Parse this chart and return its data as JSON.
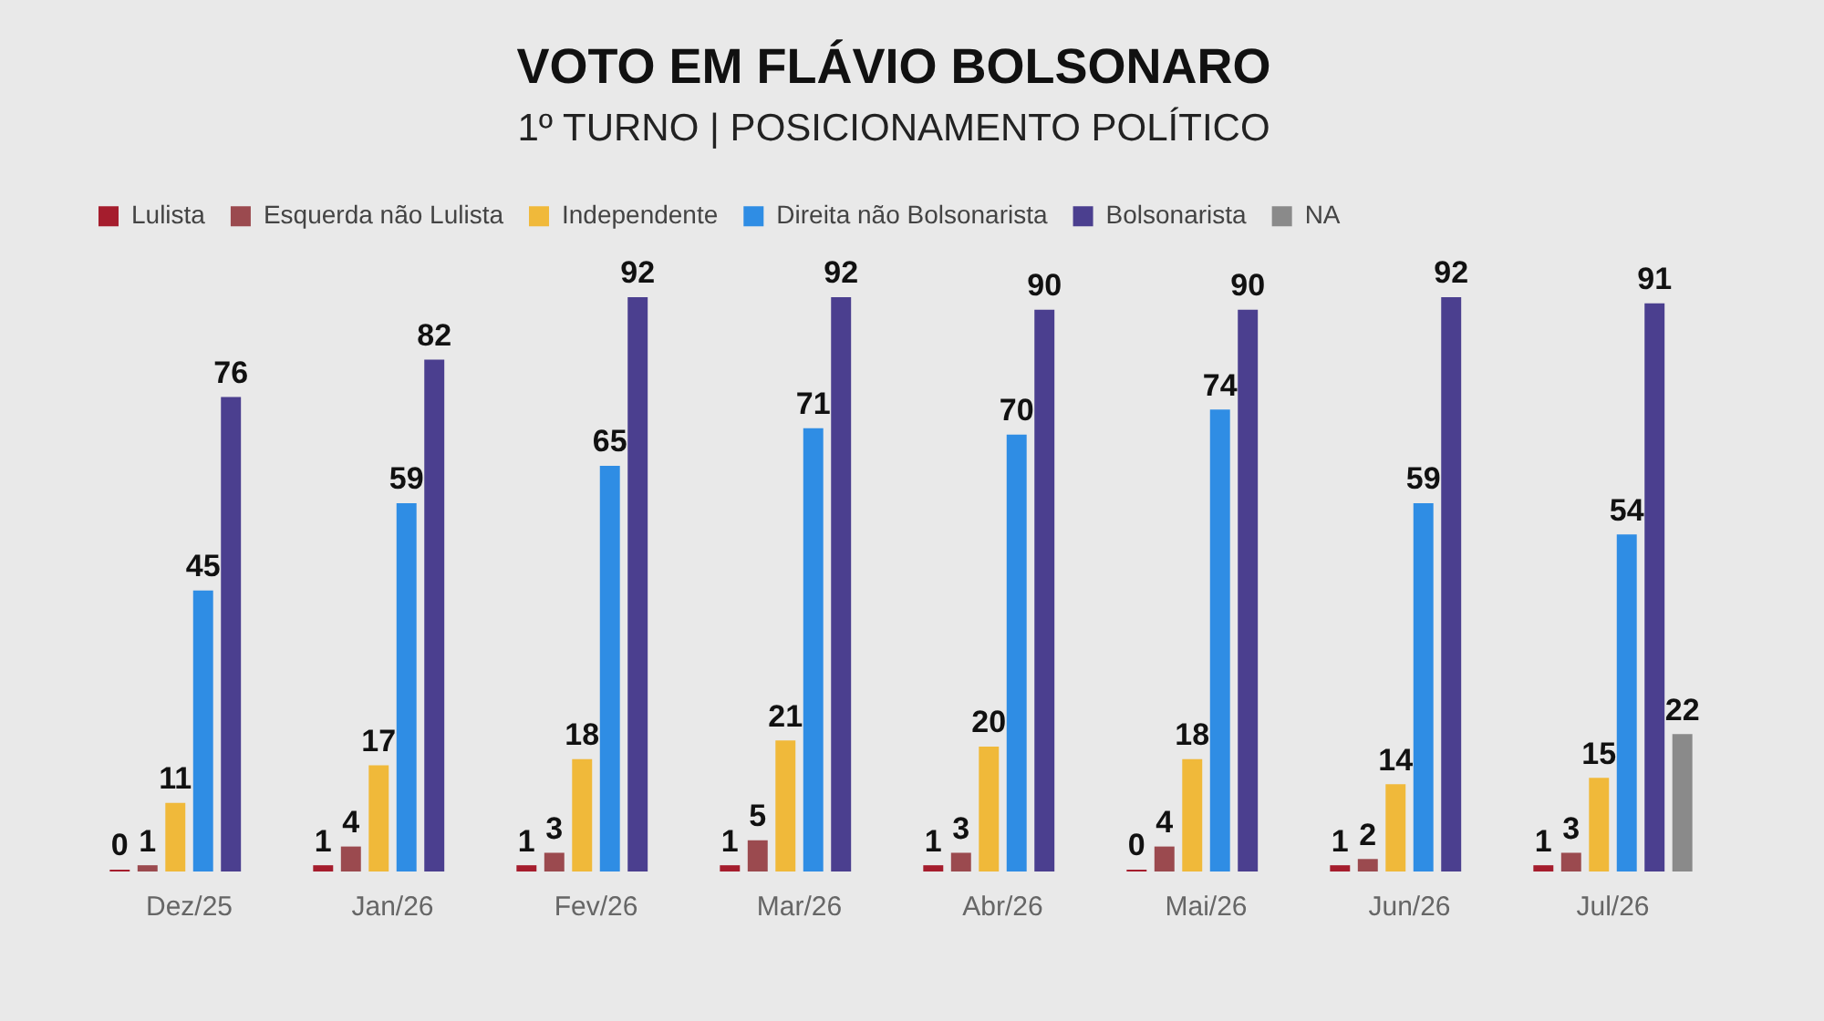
{
  "chart_data": {
    "type": "bar",
    "title": "VOTO EM FLÁVIO BOLSONARO",
    "subtitle": "1º TURNO | POSICIONAMENTO POLÍTICO",
    "categories": [
      "Dez/25",
      "Jan/26",
      "Fev/26",
      "Mar/26",
      "Abr/26",
      "Mai/26",
      "Jun/26",
      "Jul/26"
    ],
    "series": [
      {
        "name": "Lulista",
        "color": "#a51d2d",
        "values": [
          0,
          1,
          1,
          1,
          1,
          0,
          1,
          1
        ]
      },
      {
        "name": "Esquerda não Lulista",
        "color": "#9b4a4f",
        "values": [
          1,
          4,
          3,
          5,
          3,
          4,
          2,
          3
        ]
      },
      {
        "name": "Independente",
        "color": "#f0b93a",
        "values": [
          11,
          17,
          18,
          21,
          20,
          18,
          14,
          15
        ]
      },
      {
        "name": "Direita não Bolsonarista",
        "color": "#2f8de4",
        "values": [
          45,
          59,
          65,
          71,
          70,
          74,
          59,
          54
        ]
      },
      {
        "name": "Bolsonarista",
        "color": "#4b3f8f",
        "values": [
          76,
          82,
          92,
          92,
          90,
          90,
          92,
          91
        ]
      },
      {
        "name": "NA",
        "color": "#8a8a8a",
        "values": [
          null,
          null,
          null,
          null,
          null,
          null,
          null,
          22
        ]
      }
    ],
    "tick_labels": "x",
    "grid": false,
    "legend": "top left",
    "data_labels": true
  }
}
